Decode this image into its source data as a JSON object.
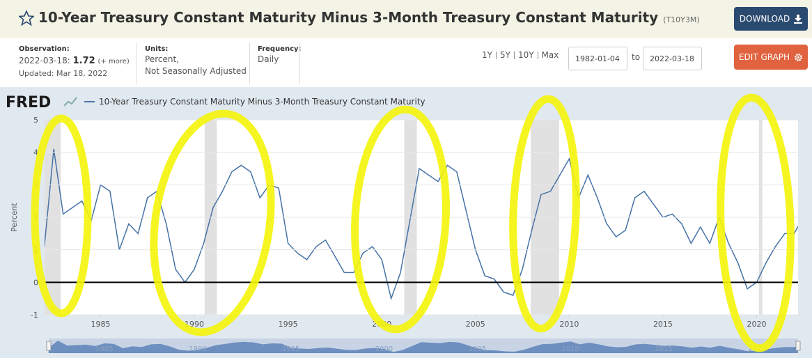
{
  "header": {
    "title": "10-Year Treasury Constant Maturity Minus 3-Month Treasury Constant Maturity",
    "series_id": "(T10Y3M)",
    "download": "DOWNLOAD"
  },
  "info": {
    "observation_label": "Observation:",
    "observation_date": "2022-03-18:",
    "observation_value": "1.72",
    "more": "(+ more)",
    "updated": "Updated: Mar 18, 2022",
    "units_label": "Units:",
    "units": [
      "Percent,",
      "Not Seasonally Adjusted"
    ],
    "frequency_label": "Frequency:",
    "frequency": "Daily",
    "ranges": [
      "1Y",
      "5Y",
      "10Y",
      "Max"
    ],
    "start_date": "1982-01-04",
    "to": "to",
    "end_date": "2022-03-18",
    "edit": "EDIT GRAPH"
  },
  "chart_data": {
    "type": "line",
    "logo": "FRED",
    "ylabel": "Percent",
    "x": [
      1982.0,
      1982.5,
      1983.0,
      1983.5,
      1984.0,
      1984.5,
      1985.0,
      1985.5,
      1986.0,
      1986.5,
      1987.0,
      1987.5,
      1988.0,
      1988.5,
      1989.0,
      1989.5,
      1990.0,
      1990.5,
      1991.0,
      1991.5,
      1992.0,
      1992.5,
      1993.0,
      1993.5,
      1994.0,
      1994.5,
      1995.0,
      1995.5,
      1996.0,
      1996.5,
      1997.0,
      1997.5,
      1998.0,
      1998.5,
      1999.0,
      1999.5,
      2000.0,
      2000.5,
      2001.0,
      2001.5,
      2002.0,
      2002.5,
      2003.0,
      2003.5,
      2004.0,
      2004.5,
      2005.0,
      2005.5,
      2006.0,
      2006.5,
      2007.0,
      2007.5,
      2008.0,
      2008.5,
      2009.0,
      2009.5,
      2010.0,
      2010.5,
      2011.0,
      2011.5,
      2012.0,
      2012.5,
      2013.0,
      2013.5,
      2014.0,
      2014.5,
      2015.0,
      2015.5,
      2016.0,
      2016.5,
      2017.0,
      2017.5,
      2018.0,
      2018.5,
      2019.0,
      2019.5,
      2020.0,
      2020.5,
      2021.0,
      2021.5,
      2022.0,
      2022.21
    ],
    "series": [
      {
        "name": "10-Year Treasury Constant Maturity Minus 3-Month Treasury Constant Maturity",
        "color": "#4572a7",
        "values": [
          1.1,
          4.1,
          2.1,
          2.3,
          2.5,
          1.9,
          3.0,
          2.8,
          1.0,
          1.8,
          1.5,
          2.6,
          2.8,
          1.8,
          0.4,
          0.0,
          0.4,
          1.2,
          2.3,
          2.8,
          3.4,
          3.6,
          3.4,
          2.6,
          3.0,
          2.9,
          1.2,
          0.9,
          0.7,
          1.1,
          1.3,
          0.8,
          0.3,
          0.3,
          0.9,
          1.1,
          0.7,
          -0.5,
          0.3,
          1.9,
          3.5,
          3.3,
          3.1,
          3.6,
          3.4,
          2.2,
          1.0,
          0.2,
          0.1,
          -0.3,
          -0.4,
          0.4,
          1.6,
          2.7,
          2.8,
          3.3,
          3.8,
          2.6,
          3.3,
          2.6,
          1.8,
          1.4,
          1.6,
          2.6,
          2.8,
          2.4,
          2.0,
          2.1,
          1.8,
          1.2,
          1.7,
          1.2,
          2.0,
          1.2,
          0.6,
          -0.2,
          0.0,
          0.6,
          1.1,
          1.5,
          1.5,
          1.72
        ]
      }
    ],
    "xlim": [
      1982.01,
      2022.21
    ],
    "ylim": [
      -1,
      5
    ],
    "xticks": [
      1985,
      1990,
      1995,
      2000,
      2005,
      2010,
      2015,
      2020
    ],
    "yticks": [
      -1,
      0,
      1,
      2,
      3,
      4,
      5
    ],
    "grid": true,
    "recessions": [
      [
        1981.55,
        1982.87
      ],
      [
        1990.55,
        1991.2
      ],
      [
        2001.2,
        2001.87
      ],
      [
        2007.95,
        2009.46
      ],
      [
        2020.12,
        2020.3
      ]
    ],
    "recession_color": "#e1e1e1"
  }
}
